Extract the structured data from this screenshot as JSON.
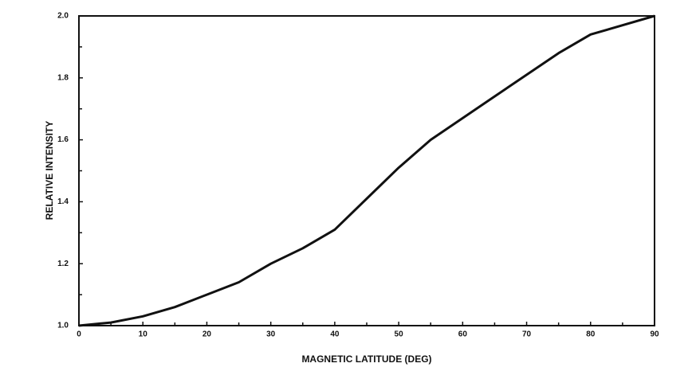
{
  "chart_data": {
    "type": "line",
    "xlabel": "MAGNETIC LATITUDE (DEG)",
    "ylabel": "RELATIVE INTENSITY",
    "x": [
      0,
      5,
      10,
      15,
      20,
      25,
      30,
      35,
      40,
      45,
      50,
      55,
      60,
      65,
      70,
      75,
      80,
      85,
      90
    ],
    "series": [
      {
        "color": "#111111",
        "values": [
          1.0,
          1.01,
          1.03,
          1.06,
          1.1,
          1.14,
          1.2,
          1.25,
          1.31,
          1.41,
          1.51,
          1.6,
          1.67,
          1.74,
          1.81,
          1.88,
          1.94,
          1.97,
          2.0
        ]
      }
    ],
    "xlim": [
      0,
      90
    ],
    "ylim": [
      1,
      2
    ],
    "xticks": [
      0,
      10,
      20,
      30,
      40,
      50,
      60,
      70,
      80,
      90
    ],
    "yticks": [
      {
        "value": 1,
        "label": "1.0"
      },
      1.2,
      1.4,
      1.6,
      1.8,
      {
        "value": 2,
        "label": "2.0"
      }
    ]
  }
}
